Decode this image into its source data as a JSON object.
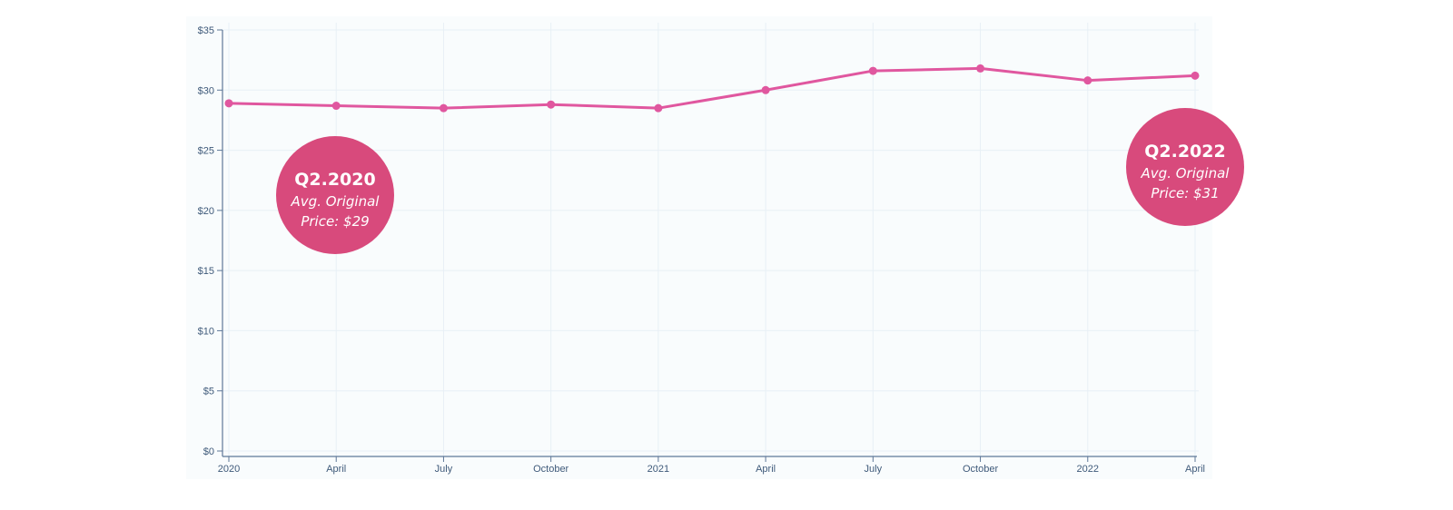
{
  "chart_data": {
    "type": "line",
    "title": "",
    "xlabel": "",
    "ylabel": "",
    "x_ticks": [
      "2020",
      "April",
      "July",
      "October",
      "2021",
      "April",
      "July",
      "October",
      "2022",
      "April"
    ],
    "y_ticks": [
      "$0",
      "$5",
      "$10",
      "$15",
      "$20",
      "$25",
      "$30",
      "$35"
    ],
    "ylim": [
      0,
      35
    ],
    "grid": true,
    "series": [
      {
        "x": [
          "2020-01",
          "2020-04",
          "2020-07",
          "2020-10",
          "2021-01",
          "2021-04",
          "2021-07",
          "2021-10",
          "2022-01",
          "2022-04"
        ],
        "values": [
          28.9,
          28.7,
          28.5,
          28.8,
          28.5,
          30.0,
          31.6,
          31.8,
          30.8,
          31.2
        ],
        "color": "#e0579f"
      }
    ],
    "annotations": [
      {
        "title": "Q2.2020",
        "line1": "Avg. Original",
        "line2": "Price: $29",
        "color": "#d84a7c",
        "at": "2020-04"
      },
      {
        "title": "Q2.2022",
        "line1": "Avg. Original",
        "line2": "Price: $31",
        "color": "#d84a7c",
        "at": "2022-04"
      }
    ]
  },
  "colors": {
    "axis": "#5f7898",
    "grid": "#e8f0f6",
    "plot_background": "#f9fcfd"
  }
}
